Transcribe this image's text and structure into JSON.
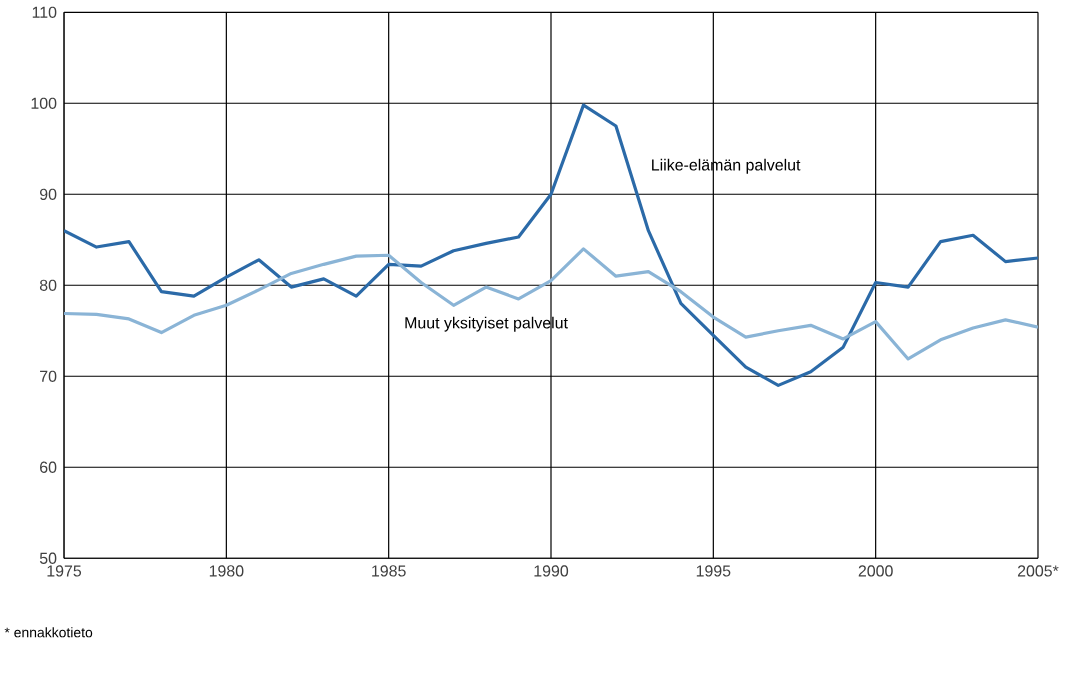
{
  "chart_data": {
    "type": "line",
    "x": [
      1975,
      1976,
      1977,
      1978,
      1979,
      1980,
      1981,
      1982,
      1983,
      1984,
      1985,
      1986,
      1987,
      1988,
      1989,
      1990,
      1991,
      1992,
      1993,
      1994,
      1995,
      1996,
      1997,
      1998,
      1999,
      2000,
      2001,
      2002,
      2003,
      2004,
      2005
    ],
    "series": [
      {
        "name": "Liike-elämän palvelut",
        "color": "#2b6aa8",
        "values": [
          86,
          84.2,
          84.8,
          79.3,
          78.8,
          80.9,
          82.8,
          79.8,
          80.7,
          78.8,
          82.3,
          82.1,
          83.8,
          84.6,
          85.3,
          90,
          99.8,
          97.5,
          86,
          78,
          74.5,
          71,
          69,
          70.5,
          73.2,
          80.3,
          79.8,
          84.8,
          85.5,
          82.6,
          83
        ]
      },
      {
        "name": "Muut yksityiset palvelut",
        "color": "#8ab4d6",
        "values": [
          76.9,
          76.8,
          76.3,
          74.8,
          76.7,
          77.8,
          79.5,
          81.3,
          82.3,
          83.2,
          83.3,
          80.3,
          77.8,
          79.8,
          78.5,
          80.5,
          84,
          81,
          81.5,
          79.3,
          76.5,
          74.3,
          75,
          75.6,
          74.1,
          76,
          71.9,
          74,
          75.3,
          76.2,
          75.4
        ]
      }
    ],
    "xlim": [
      1975,
      2005
    ],
    "ylim": [
      50,
      110
    ],
    "xticks": [
      1975,
      1980,
      1985,
      1990,
      1995,
      2000,
      {
        "value": 2005,
        "label": "2005*"
      }
    ],
    "yticks": [
      50,
      60,
      70,
      80,
      90,
      100,
      110
    ],
    "grid": true,
    "legend": false,
    "marker": "none",
    "line_style": "solid",
    "annotations": [
      "* ennakkotieto"
    ]
  }
}
